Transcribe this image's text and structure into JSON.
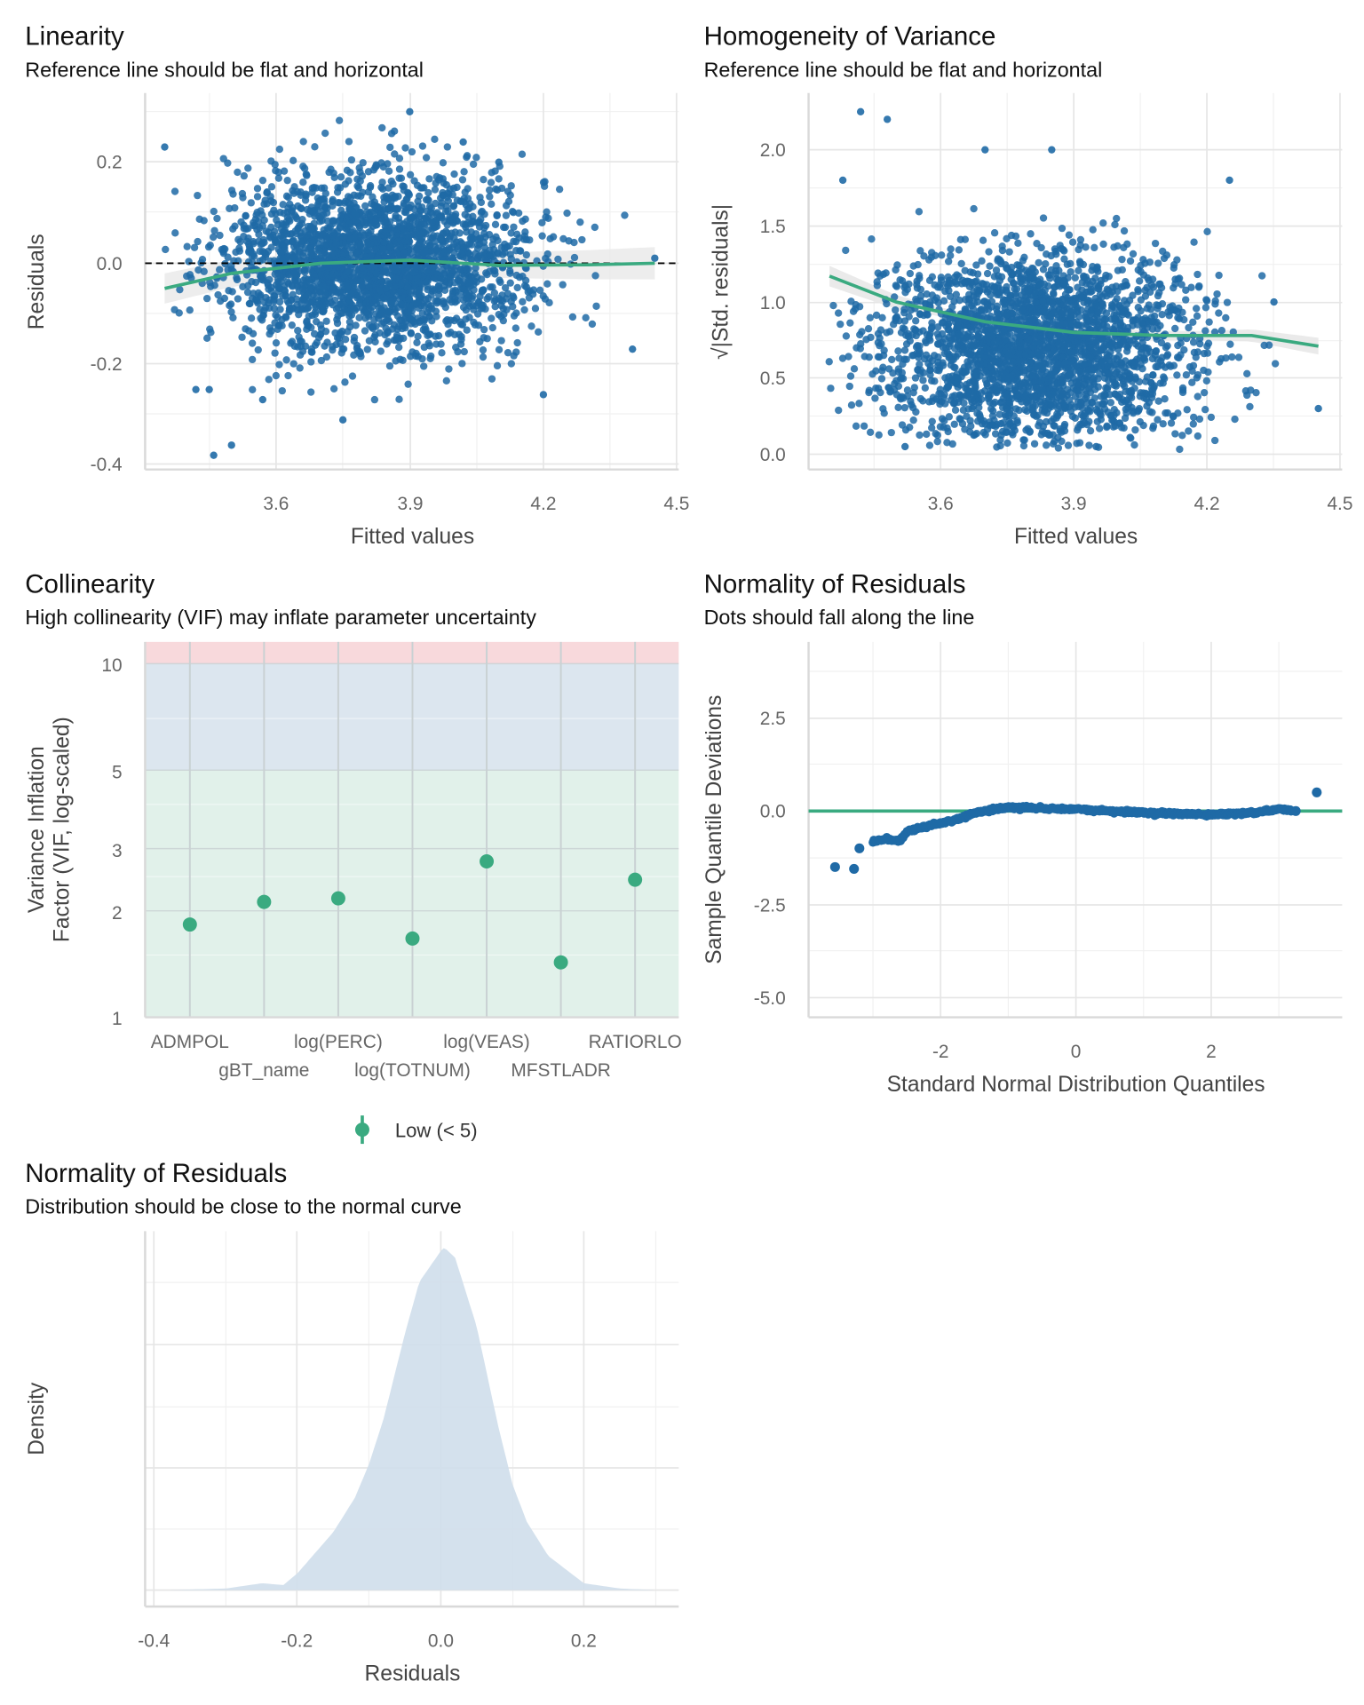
{
  "colors": {
    "points": "#1f6aa6",
    "smooth": "#3aaa80",
    "band_high": "#f8d9dc",
    "band_moderate": "#dce6ef",
    "band_low": "#e1f1ea",
    "density_fill": "#cfdeeb",
    "ref_line": "#000000"
  },
  "chart_data": [
    {
      "type": "scatter",
      "title": "Linearity",
      "subtitle": "Reference line should be flat and horizontal",
      "xlabel": "Fitted values",
      "ylabel": "Residuals",
      "xlim": [
        3.3,
        4.5
      ],
      "ylim": [
        -0.4,
        0.3
      ],
      "xticks": [
        "3.6",
        "3.9",
        "4.2",
        "4.5"
      ],
      "yticks": [
        "-0.4",
        "-0.2",
        "0.0",
        "0.2"
      ],
      "grid": true,
      "reference_line": 0,
      "smooth": {
        "x": [
          3.35,
          3.5,
          3.7,
          3.9,
          4.1,
          4.3,
          4.45
        ],
        "y": [
          -0.05,
          -0.02,
          0.0,
          0.006,
          -0.004,
          -0.003,
          0.0
        ]
      },
      "points_sample": [
        [
          3.35,
          0.23
        ],
        [
          3.42,
          -0.25
        ],
        [
          3.45,
          -0.25
        ],
        [
          3.46,
          -0.38
        ],
        [
          3.5,
          -0.36
        ],
        [
          3.9,
          0.3
        ],
        [
          4.02,
          0.24
        ],
        [
          4.1,
          0.2
        ],
        [
          4.4,
          -0.17
        ],
        [
          4.45,
          0.01
        ],
        [
          3.75,
          -0.31
        ],
        [
          4.2,
          -0.26
        ],
        [
          3.57,
          -0.27
        ]
      ]
    },
    {
      "type": "scatter",
      "title": "Homogeneity of Variance",
      "subtitle": "Reference line should be flat and horizontal",
      "xlabel": "Fitted values",
      "ylabel": "√|Std. residuals|",
      "xlim": [
        3.3,
        4.5
      ],
      "ylim": [
        0,
        2.3
      ],
      "xticks": [
        "3.6",
        "3.9",
        "4.2",
        "4.5"
      ],
      "yticks": [
        "0.0",
        "0.5",
        "1.0",
        "1.5",
        "2.0"
      ],
      "grid": true,
      "smooth": {
        "x": [
          3.35,
          3.5,
          3.7,
          3.9,
          4.1,
          4.3,
          4.45
        ],
        "y": [
          1.17,
          1.0,
          0.87,
          0.8,
          0.78,
          0.78,
          0.71
        ]
      },
      "points_sample": [
        [
          3.42,
          2.25
        ],
        [
          3.48,
          2.2
        ],
        [
          3.38,
          1.8
        ],
        [
          3.7,
          2.0
        ],
        [
          3.85,
          2.0
        ],
        [
          4.25,
          1.8
        ],
        [
          4.35,
          1.0
        ],
        [
          4.45,
          0.3
        ],
        [
          3.52,
          0.05
        ],
        [
          3.95,
          0.05
        ]
      ]
    },
    {
      "type": "scatter",
      "title": "Collinearity",
      "subtitle": "High collinearity (VIF) may inflate parameter uncertainty",
      "ylabel_lines": [
        "Variance Inflation",
        "Factor (VIF, log-scaled)"
      ],
      "yscale": "log",
      "ylim": [
        1,
        11.5
      ],
      "yticks": [
        "1",
        "2",
        "3",
        "5",
        "10"
      ],
      "categories": [
        "ADMPOL",
        "gBT_name",
        "log(PERC)",
        "log(TOTNUM)",
        "log(VEAS)",
        "MFSTLADR",
        "RATIORLO"
      ],
      "values": [
        1.83,
        2.12,
        2.17,
        1.67,
        2.76,
        1.43,
        2.45
      ],
      "bands": [
        {
          "from": 1,
          "to": 5,
          "level": "low"
        },
        {
          "from": 5,
          "to": 10,
          "level": "moderate"
        },
        {
          "from": 10,
          "to": 11.5,
          "level": "high"
        }
      ],
      "legend": {
        "position": "bottom",
        "entries": [
          "Low (< 5)"
        ]
      }
    },
    {
      "type": "scatter",
      "title": "Normality of Residuals",
      "subtitle": "Dots should fall along the line",
      "xlabel": "Standard Normal Distribution Quantiles",
      "ylabel": "Sample Quantile Deviations",
      "xlim": [
        -3.9,
        3.9
      ],
      "ylim": [
        -5.5,
        4.3
      ],
      "xticks": [
        "-2",
        "0",
        "2"
      ],
      "yticks": [
        "-5.0",
        "-2.5",
        "0.0",
        "2.5"
      ],
      "reference_line": 0,
      "curve": {
        "x": [
          -3.56,
          -3.28,
          -3.2,
          -3.0,
          -2.8,
          -2.6,
          -2.5,
          -2.2,
          -1.8,
          -1.5,
          -1.0,
          0,
          1,
          2,
          2.6,
          3.0,
          3.25,
          3.56
        ],
        "y": [
          -1.5,
          -1.55,
          -1.0,
          -0.8,
          -0.75,
          -0.8,
          -0.55,
          -0.4,
          -0.25,
          -0.05,
          0.1,
          0.05,
          -0.05,
          -0.1,
          -0.05,
          0.05,
          0.0,
          0.5
        ]
      }
    },
    {
      "type": "area",
      "title": "Normality of Residuals",
      "subtitle": "Distribution should be close to the normal curve",
      "xlabel": "Residuals",
      "ylabel": "Density",
      "xlim": [
        -0.41,
        0.33
      ],
      "xticks": [
        "-0.4",
        "-0.2",
        "0.0",
        "0.2"
      ],
      "x": [
        -0.38,
        -0.3,
        -0.25,
        -0.22,
        -0.2,
        -0.15,
        -0.12,
        -0.1,
        -0.08,
        -0.05,
        -0.03,
        0.0,
        0.005,
        0.02,
        0.05,
        0.08,
        0.1,
        0.12,
        0.15,
        0.2,
        0.25,
        0.3
      ],
      "y_relative": [
        0.0,
        0.005,
        0.02,
        0.015,
        0.05,
        0.17,
        0.27,
        0.37,
        0.5,
        0.75,
        0.9,
        0.99,
        1.0,
        0.97,
        0.77,
        0.48,
        0.31,
        0.2,
        0.1,
        0.02,
        0.005,
        0.0
      ]
    }
  ]
}
